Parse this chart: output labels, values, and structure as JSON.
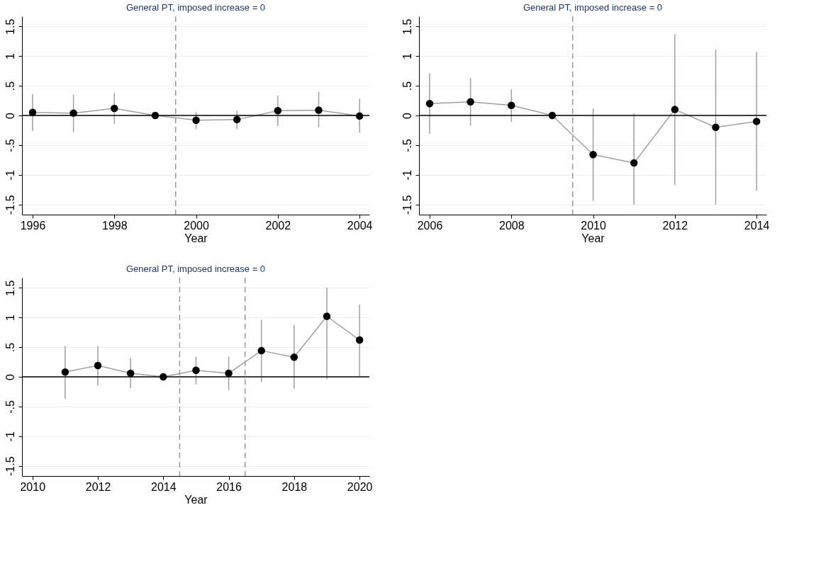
{
  "chart_data": [
    {
      "type": "line",
      "title": "General PT, imposed increase = 0",
      "xlabel": "Year",
      "x": [
        1996,
        1997,
        1998,
        1999,
        2000,
        2001,
        2002,
        2003,
        2004
      ],
      "series": [
        {
          "color": "#000000",
          "values": [
            0.05,
            0.04,
            0.12,
            0,
            -0.08,
            -0.07,
            0.08,
            0.09,
            -0.01
          ],
          "errors": [
            [
              -0.26,
              0.36
            ],
            [
              -0.28,
              0.35
            ],
            [
              -0.14,
              0.38
            ],
            null,
            [
              -0.23,
              0.06
            ],
            [
              -0.23,
              0.08
            ],
            [
              -0.18,
              0.33
            ],
            [
              -0.2,
              0.4
            ],
            [
              -0.29,
              0.28
            ]
          ]
        }
      ],
      "xlim": [
        1995.74,
        2004.24
      ],
      "xticks": [
        1996,
        1998,
        2000,
        2002,
        2004
      ],
      "ylim": [
        -1.67,
        1.67
      ],
      "yticks": [
        {
          "value": -1.5,
          "label": "-1.5"
        },
        {
          "value": -1,
          "label": "-1"
        },
        {
          "value": -0.5,
          "label": "-.5"
        },
        0,
        {
          "value": 0.5,
          "label": ".5"
        },
        1,
        1.5
      ],
      "ref_lines": [
        {
          "axis": "y",
          "value": 0,
          "color": "#000000",
          "line_style": "solid"
        },
        {
          "axis": "x",
          "value": 1999.5,
          "color": "#999999",
          "line_style": "dashed"
        }
      ],
      "grid": "y",
      "marker": "circle",
      "line_style": "solid"
    },
    {
      "type": "line",
      "title": "General PT, imposed increase = 0",
      "xlabel": "Year",
      "x": [
        2006,
        2007,
        2008,
        2009,
        2010,
        2011,
        2012,
        2013,
        2014
      ],
      "series": [
        {
          "color": "#000000",
          "values": [
            0.2,
            0.23,
            0.17,
            0,
            -0.66,
            -0.8,
            0.1,
            -0.2,
            -0.1
          ],
          "errors": [
            [
              -0.31,
              0.71
            ],
            [
              -0.17,
              0.63
            ],
            [
              -0.11,
              0.44
            ],
            null,
            [
              -1.44,
              0.12
            ],
            [
              -1.5,
              0.04
            ],
            [
              -1.17,
              1.37
            ],
            [
              -1.5,
              1.11
            ],
            [
              -1.27,
              1.07
            ]
          ]
        }
      ],
      "xlim": [
        2005.74,
        2014.24
      ],
      "xticks": [
        2006,
        2008,
        2010,
        2012,
        2014
      ],
      "ylim": [
        -1.67,
        1.67
      ],
      "yticks": [
        {
          "value": -1.5,
          "label": "-1.5"
        },
        {
          "value": -1,
          "label": "-1"
        },
        {
          "value": -0.5,
          "label": "-.5"
        },
        0,
        {
          "value": 0.5,
          "label": ".5"
        },
        1,
        1.5
      ],
      "ref_lines": [
        {
          "axis": "y",
          "value": 0,
          "color": "#000000",
          "line_style": "solid"
        },
        {
          "axis": "x",
          "value": 2009.5,
          "color": "#999999",
          "line_style": "dashed"
        }
      ],
      "grid": "y",
      "marker": "circle",
      "line_style": "solid"
    },
    {
      "type": "line",
      "title": "General PT, imposed increase = 0",
      "xlabel": "Year",
      "x": [
        2011,
        2012,
        2013,
        2014,
        2015,
        2016,
        2017,
        2018,
        2019,
        2020
      ],
      "series": [
        {
          "color": "#000000",
          "values": [
            0.08,
            0.19,
            0.06,
            0,
            0.11,
            0.06,
            0.44,
            0.33,
            1.02,
            0.62
          ],
          "errors": [
            [
              -0.37,
              0.52
            ],
            [
              -0.15,
              0.52
            ],
            [
              -0.19,
              0.32
            ],
            null,
            [
              -0.13,
              0.34
            ],
            [
              -0.22,
              0.34
            ],
            [
              -0.09,
              0.96
            ],
            [
              -0.2,
              0.87
            ],
            [
              -0.04,
              1.5
            ],
            [
              0.01,
              1.22
            ]
          ]
        }
      ],
      "xlim": [
        2009.68,
        2020.3
      ],
      "xticks": [
        2010,
        2012,
        2014,
        2016,
        2018,
        2020
      ],
      "ylim": [
        -1.67,
        1.67
      ],
      "yticks": [
        {
          "value": -1.5,
          "label": "-1.5"
        },
        {
          "value": -1,
          "label": "-1"
        },
        {
          "value": -0.5,
          "label": "-.5"
        },
        0,
        {
          "value": 0.5,
          "label": ".5"
        },
        1,
        1.5
      ],
      "ref_lines": [
        {
          "axis": "y",
          "value": 0,
          "color": "#000000",
          "line_style": "solid"
        },
        {
          "axis": "x",
          "value": 2014.5,
          "color": "#999999",
          "line_style": "dashed"
        },
        {
          "axis": "x",
          "value": 2016.5,
          "color": "#999999",
          "line_style": "dashed"
        }
      ],
      "grid": "y",
      "marker": "circle",
      "line_style": "solid"
    }
  ]
}
